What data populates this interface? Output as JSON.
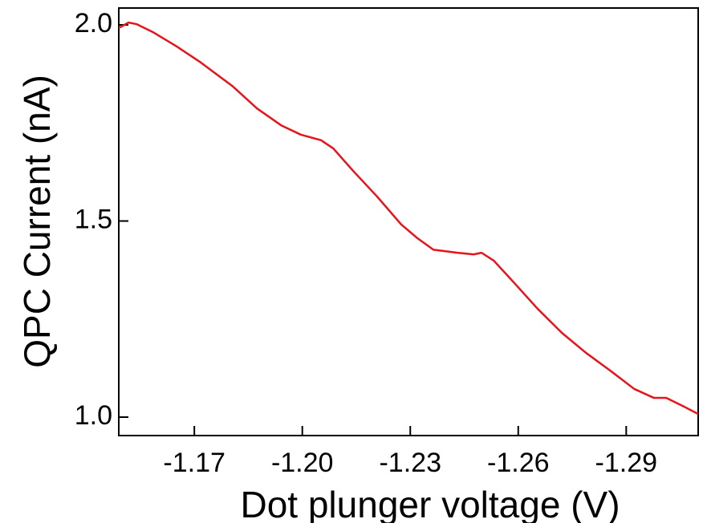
{
  "chart_data": {
    "type": "line",
    "x_label": "Dot plunger voltage (V)",
    "y_label": "QPC Current (nA)",
    "xlim": [
      -1.149,
      -1.31
    ],
    "xticks": [
      -1.17,
      {
        "value": -1.2,
        "label": "-1.20"
      },
      -1.23,
      -1.26,
      -1.29
    ],
    "ylim": [
      0.953,
      2.043
    ],
    "yticks": [
      {
        "value": 1.0,
        "label": "1.0"
      },
      1.5,
      {
        "value": 2.0,
        "label": "2.0"
      }
    ],
    "series": [
      {
        "color": "#e8141c",
        "x": [
          -1.149,
          -1.1517,
          -1.1539,
          -1.1584,
          -1.1651,
          -1.1718,
          -1.1807,
          -1.1874,
          -1.1941,
          -1.1996,
          -1.2052,
          -1.2086,
          -1.2141,
          -1.2208,
          -1.2275,
          -1.232,
          -1.2364,
          -1.2431,
          -1.2476,
          -1.2498,
          -1.2532,
          -1.2587,
          -1.2654,
          -1.2721,
          -1.2788,
          -1.2855,
          -1.2922,
          -1.2977,
          -1.3011,
          -1.3056,
          -1.31
        ],
        "values": [
          1.992,
          2.006,
          2.002,
          1.982,
          1.945,
          1.904,
          1.843,
          1.787,
          1.744,
          1.72,
          1.706,
          1.685,
          1.628,
          1.562,
          1.491,
          1.456,
          1.427,
          1.419,
          1.415,
          1.419,
          1.399,
          1.344,
          1.276,
          1.215,
          1.164,
          1.119,
          1.072,
          1.049,
          1.049,
          1.029,
          1.008
        ]
      }
    ]
  }
}
